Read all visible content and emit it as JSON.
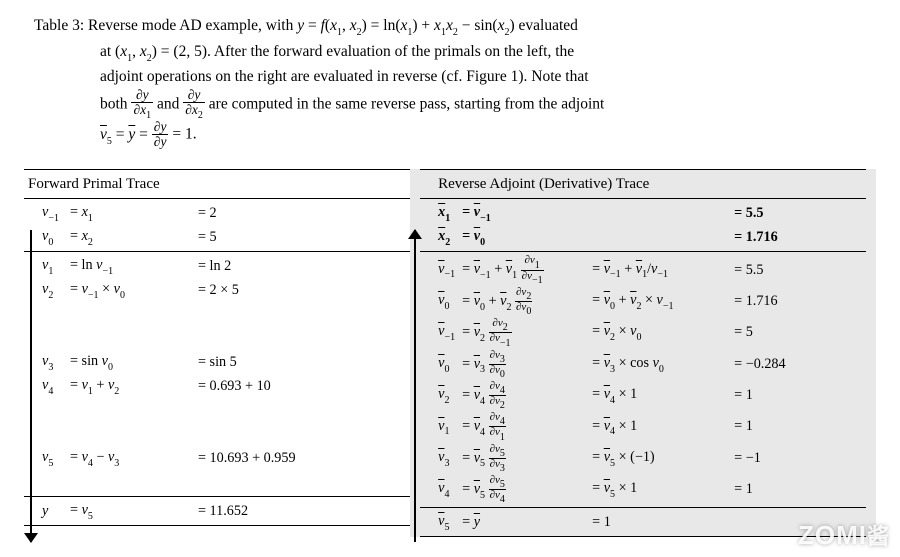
{
  "caption": {
    "line1": "Table 3:  Reverse mode AD example, with <span class='it'>y</span> = <span class='it'>f</span>(<span class='it'>x</span><span class='sub'>1</span>, <span class='it'>x</span><span class='sub'>2</span>) = ln(<span class='it'>x</span><span class='sub'>1</span>) + <span class='it'>x</span><span class='sub'>1</span><span class='it'>x</span><span class='sub'>2</span> − sin(<span class='it'>x</span><span class='sub'>2</span>) evaluated",
    "line2": "at (<span class='it'>x</span><span class='sub'>1</span>, <span class='it'>x</span><span class='sub'>2</span>) = (2, 5).  After the forward evaluation of the primals on the left, the",
    "line3": "adjoint operations on the right are evaluated in reverse (cf. Figure 1).  Note that",
    "line4_a": "both ",
    "line4_b": " and ",
    "line4_c": " are computed in the same reverse pass, starting from the adjoint",
    "line5_a": "<span class='it ov'>v</span><span class='sub'>5</span> = <span class='it ov'>y</span> = ",
    "line5_b": " = 1.",
    "frac1_num": "∂<span class='it'>y</span>",
    "frac1_den": "∂<span class='it'>x</span><span class='sub'>1</span>",
    "frac2_num": "∂<span class='it'>y</span>",
    "frac2_den": "∂<span class='it'>x</span><span class='sub'>2</span>",
    "frac3_num": "∂<span class='it'>y</span>",
    "frac3_den": "∂<span class='it'>y</span>"
  },
  "leftHeader": "Forward Primal Trace",
  "rightHeader": "Reverse Adjoint (Derivative) Trace",
  "leftSections": [
    [
      {
        "c1": "<span class='it'>v</span><span class='sub'>−1</span>",
        "c2": "= <span class='it'>x</span><span class='sub'>1</span>",
        "c3": "= 2"
      },
      {
        "c1": "<span class='it'>v</span><span class='sub'>0</span>",
        "c2": "= <span class='it'>x</span><span class='sub'>2</span>",
        "c3": "= 5"
      }
    ],
    [
      {
        "c1": "<span class='it'>v</span><span class='sub'>1</span>",
        "c2": "= ln <span class='it'>v</span><span class='sub'>−1</span>",
        "c3": "= ln 2"
      },
      {
        "c1": "<span class='it'>v</span><span class='sub'>2</span>",
        "c2": "= <span class='it'>v</span><span class='sub'>−1</span> × <span class='it'>v</span><span class='sub'>0</span>",
        "c3": "= 2 × 5"
      },
      {
        "c1": "",
        "c2": "",
        "c3": ""
      },
      {
        "c1": "",
        "c2": "",
        "c3": ""
      },
      {
        "c1": "<span class='it'>v</span><span class='sub'>3</span>",
        "c2": "= sin <span class='it'>v</span><span class='sub'>0</span>",
        "c3": "= sin 5"
      },
      {
        "c1": "<span class='it'>v</span><span class='sub'>4</span>",
        "c2": "= <span class='it'>v</span><span class='sub'>1</span> + <span class='it'>v</span><span class='sub'>2</span>",
        "c3": "= 0.693 + 10"
      },
      {
        "c1": "",
        "c2": "",
        "c3": ""
      },
      {
        "c1": "",
        "c2": "",
        "c3": ""
      },
      {
        "c1": "<span class='it'>v</span><span class='sub'>5</span>",
        "c2": "= <span class='it'>v</span><span class='sub'>4</span> − <span class='it'>v</span><span class='sub'>3</span>",
        "c3": "= 10.693 + 0.959"
      },
      {
        "c1": "",
        "c2": "",
        "c3": ""
      }
    ],
    [
      {
        "c1": "<span class='it'>y</span>",
        "c2": "= <span class='it'>v</span><span class='sub'>5</span>",
        "c3": "= 11.652"
      }
    ]
  ],
  "rightSections": [
    [
      {
        "c1": "<span class='it ov bold'>x</span><span class='sub bold'>1</span>",
        "c2": "<span class='bold'>= <span class='it ov'>v</span><span class='sub'>−1</span></span>",
        "c3": "",
        "c4": "<span class='bold'>= 5.5</span>"
      },
      {
        "c1": "<span class='it ov bold'>x</span><span class='sub bold'>2</span>",
        "c2": "<span class='bold'>= <span class='it ov'>v</span><span class='sub'>0</span></span>",
        "c3": "",
        "c4": "<span class='bold'>= 1.716</span>"
      }
    ],
    [
      {
        "c1": "<span class='it ov'>v</span><span class='sub'>−1</span>",
        "c2": "= <span class='it ov'>v</span><span class='sub'>−1</span> + <span class='it ov'>v</span><span class='sub'>1</span> <span class='sfrac'><span class='num'>∂<span class='it'>v</span><span class='sub'>1</span></span><span class='den'>∂<span class='it'>v</span><span class='sub'>−1</span></span></span>",
        "c3": "= <span class='it ov'>v</span><span class='sub'>−1</span> + <span class='it ov'>v</span><span class='sub'>1</span>/<span class='it'>v</span><span class='sub'>−1</span>",
        "c4": "= 5.5"
      },
      {
        "c1": "<span class='it ov'>v</span><span class='sub'>0</span>",
        "c2": "= <span class='it ov'>v</span><span class='sub'>0</span> + <span class='it ov'>v</span><span class='sub'>2</span> <span class='sfrac'><span class='num'>∂<span class='it'>v</span><span class='sub'>2</span></span><span class='den'>∂<span class='it'>v</span><span class='sub'>0</span></span></span>",
        "c3": "= <span class='it ov'>v</span><span class='sub'>0</span> + <span class='it ov'>v</span><span class='sub'>2</span> × <span class='it'>v</span><span class='sub'>−1</span>",
        "c4": "= 1.716"
      },
      {
        "c1": "<span class='it ov'>v</span><span class='sub'>−1</span>",
        "c2": "= <span class='it ov'>v</span><span class='sub'>2</span> <span class='sfrac'><span class='num'>∂<span class='it'>v</span><span class='sub'>2</span></span><span class='den'>∂<span class='it'>v</span><span class='sub'>−1</span></span></span>",
        "c3": "= <span class='it ov'>v</span><span class='sub'>2</span> × <span class='it'>v</span><span class='sub'>0</span>",
        "c4": "= 5"
      },
      {
        "c1": "<span class='it ov'>v</span><span class='sub'>0</span>",
        "c2": "= <span class='it ov'>v</span><span class='sub'>3</span> <span class='sfrac'><span class='num'>∂<span class='it'>v</span><span class='sub'>3</span></span><span class='den'>∂<span class='it'>v</span><span class='sub'>0</span></span></span>",
        "c3": "= <span class='it ov'>v</span><span class='sub'>3</span> × cos <span class='it'>v</span><span class='sub'>0</span>",
        "c4": "= −0.284"
      },
      {
        "c1": "<span class='it ov'>v</span><span class='sub'>2</span>",
        "c2": "= <span class='it ov'>v</span><span class='sub'>4</span> <span class='sfrac'><span class='num'>∂<span class='it'>v</span><span class='sub'>4</span></span><span class='den'>∂<span class='it'>v</span><span class='sub'>2</span></span></span>",
        "c3": "= <span class='it ov'>v</span><span class='sub'>4</span> × 1",
        "c4": "= 1"
      },
      {
        "c1": "<span class='it ov'>v</span><span class='sub'>1</span>",
        "c2": "= <span class='it ov'>v</span><span class='sub'>4</span> <span class='sfrac'><span class='num'>∂<span class='it'>v</span><span class='sub'>4</span></span><span class='den'>∂<span class='it'>v</span><span class='sub'>1</span></span></span>",
        "c3": "= <span class='it ov'>v</span><span class='sub'>4</span> × 1",
        "c4": "= 1"
      },
      {
        "c1": "<span class='it ov'>v</span><span class='sub'>3</span>",
        "c2": "= <span class='it ov'>v</span><span class='sub'>5</span> <span class='sfrac'><span class='num'>∂<span class='it'>v</span><span class='sub'>5</span></span><span class='den'>∂<span class='it'>v</span><span class='sub'>3</span></span></span>",
        "c3": "= <span class='it ov'>v</span><span class='sub'>5</span> × (−1)",
        "c4": "= −1"
      },
      {
        "c1": "<span class='it ov'>v</span><span class='sub'>4</span>",
        "c2": "= <span class='it ov'>v</span><span class='sub'>5</span> <span class='sfrac'><span class='num'>∂<span class='it'>v</span><span class='sub'>5</span></span><span class='den'>∂<span class='it'>v</span><span class='sub'>4</span></span></span>",
        "c3": "= <span class='it ov'>v</span><span class='sub'>5</span> × 1",
        "c4": "= 1"
      }
    ],
    [
      {
        "c1": "<span class='it ov'>v</span><span class='sub'>5</span>",
        "c2": "= <span class='it ov'>y</span>",
        "c3": "= 1",
        "c4": ""
      }
    ]
  ],
  "watermark": "ZOMI<span class='cn'>酱</span>"
}
